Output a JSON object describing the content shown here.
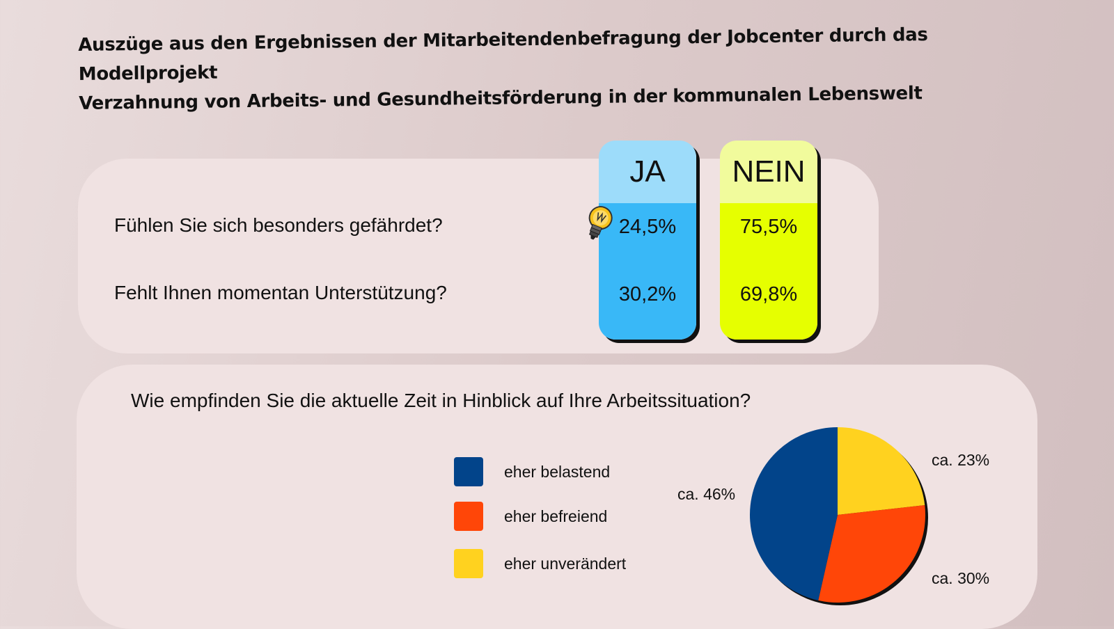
{
  "title": {
    "line1": "Auszüge aus den Ergebnissen der Mitarbeitendenbefragung der Jobcenter durch das Modellprojekt",
    "line2": "Verzahnung von Arbeits- und Gesundheitsförderung in der kommunalen Lebenswelt"
  },
  "table": {
    "columns": [
      "JA",
      "NEIN"
    ],
    "rows": [
      {
        "question": "Fühlen Sie sich besonders gefährdet?",
        "ja": "24,5%",
        "nein": "75,5%"
      },
      {
        "question": "Fehlt Ihnen momentan Unterstützung?",
        "ja": "30,2%",
        "nein": "69,8%"
      }
    ],
    "colors": {
      "ja_head": "#9ddcfa",
      "ja_body": "#39b8f7",
      "nein_head": "#f1fb9c",
      "nein_body": "#e6ff00"
    },
    "icon": "lightbulb-icon"
  },
  "pie": {
    "question": "Wie empfinden Sie die aktuelle Zeit in Hinblick auf Ihre Arbeitssituation?",
    "legend": [
      {
        "label": "eher belastend",
        "color": "#02448a"
      },
      {
        "label": "eher befreiend",
        "color": "#ff4608"
      },
      {
        "label": "eher unverändert",
        "color": "#ffd21f"
      }
    ],
    "slice_labels": [
      "ca. 46%",
      "ca. 30%",
      "ca. 23%"
    ]
  },
  "chart_data": [
    {
      "type": "table",
      "columns": [
        "JA",
        "NEIN"
      ],
      "rows": [
        {
          "label": "Fühlen Sie sich besonders gefährdet?",
          "values": [
            24.5,
            75.5
          ]
        },
        {
          "label": "Fehlt Ihnen momentan Unterstützung?",
          "values": [
            30.2,
            69.8
          ]
        }
      ],
      "unit": "%"
    },
    {
      "type": "pie",
      "title": "Wie empfinden Sie die aktuelle Zeit in Hinblick auf Ihre Arbeitssituation?",
      "categories": [
        "eher belastend",
        "eher befreiend",
        "eher unverändert"
      ],
      "values": [
        46,
        30,
        23
      ],
      "colors": [
        "#02448a",
        "#ff4608",
        "#ffd21f"
      ],
      "start": "12 o'clock",
      "direction": "clockwise, starting with eher unverändert"
    }
  ]
}
